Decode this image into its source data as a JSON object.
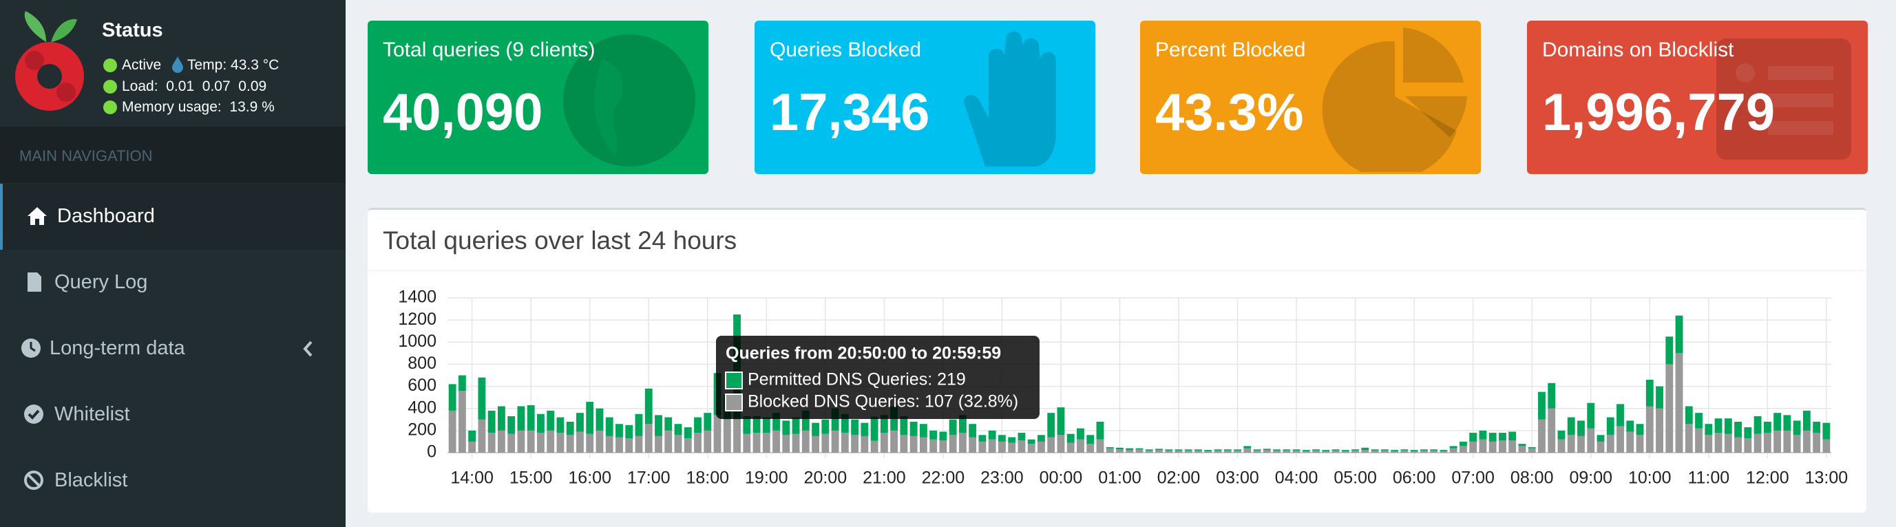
{
  "sidebar": {
    "status": {
      "title": "Status",
      "active": "Active",
      "temp": "Temp: 43.3 °C",
      "load": "Load:  0.01  0.07  0.09",
      "memory": "Memory usage:  13.9 %"
    },
    "nav_header": "MAIN NAVIGATION",
    "menu": [
      "Dashboard",
      "Query Log",
      "Long-term data",
      "Whitelist",
      "Blacklist"
    ]
  },
  "cards": [
    {
      "label": "Total queries (9 clients)",
      "value": "40,090"
    },
    {
      "label": "Queries Blocked",
      "value": "17,346"
    },
    {
      "label": "Percent Blocked",
      "value": "43.3%"
    },
    {
      "label": "Domains on Blocklist",
      "value": "1,996,779"
    }
  ],
  "chart_data": {
    "type": "bar",
    "stacked": true,
    "title": "Total queries over last 24 hours",
    "grid": true,
    "ylim": [
      0,
      1400
    ],
    "yticks": [
      0,
      200,
      400,
      600,
      800,
      1000,
      1200,
      1400
    ],
    "categories": [
      null,
      null,
      "14:00",
      null,
      null,
      null,
      null,
      null,
      "15:00",
      null,
      null,
      null,
      null,
      null,
      "16:00",
      null,
      null,
      null,
      null,
      null,
      "17:00",
      null,
      null,
      null,
      null,
      null,
      "18:00",
      null,
      null,
      null,
      null,
      null,
      "19:00",
      null,
      null,
      null,
      null,
      null,
      "20:00",
      null,
      null,
      null,
      null,
      null,
      "21:00",
      null,
      null,
      null,
      null,
      null,
      "22:00",
      null,
      null,
      null,
      null,
      null,
      "23:00",
      null,
      null,
      null,
      null,
      null,
      "00:00",
      null,
      null,
      null,
      null,
      null,
      "01:00",
      null,
      null,
      null,
      null,
      null,
      "02:00",
      null,
      null,
      null,
      null,
      null,
      "03:00",
      null,
      null,
      null,
      null,
      null,
      "04:00",
      null,
      null,
      null,
      null,
      null,
      "05:00",
      null,
      null,
      null,
      null,
      null,
      "06:00",
      null,
      null,
      null,
      null,
      null,
      "07:00",
      null,
      null,
      null,
      null,
      null,
      "08:00",
      null,
      null,
      null,
      null,
      null,
      "09:00",
      null,
      null,
      null,
      null,
      null,
      "10:00",
      null,
      null,
      null,
      null,
      null,
      "11:00",
      null,
      null,
      null,
      null,
      null,
      "12:00",
      null,
      null,
      null,
      null,
      null,
      "13:00"
    ],
    "series": [
      {
        "color": "#999999",
        "values": [
          380,
          560,
          100,
          300,
          180,
          200,
          170,
          200,
          200,
          180,
          200,
          180,
          160,
          190,
          170,
          200,
          150,
          140,
          130,
          150,
          260,
          150,
          200,
          160,
          130,
          180,
          200,
          340,
          300,
          300,
          170,
          180,
          180,
          200,
          160,
          170,
          200,
          150,
          170,
          200,
          180,
          160,
          150,
          107,
          180,
          200,
          160,
          150,
          140,
          120,
          110,
          160,
          180,
          140,
          100,
          120,
          100,
          90,
          110,
          80,
          100,
          140,
          160,
          90,
          120,
          80,
          120,
          40,
          30,
          25,
          30,
          20,
          25,
          20,
          20,
          20,
          20,
          15,
          20,
          20,
          20,
          40,
          20,
          25,
          20,
          20,
          20,
          15,
          20,
          15,
          20,
          15,
          20,
          25,
          20,
          20,
          15,
          20,
          15,
          20,
          20,
          15,
          40,
          60,
          100,
          120,
          100,
          110,
          110,
          60,
          40,
          300,
          400,
          120,
          160,
          150,
          220,
          100,
          160,
          240,
          190,
          160,
          420,
          400,
          800,
          900,
          260,
          220,
          160,
          180,
          170,
          140,
          130,
          170,
          180,
          200,
          200,
          160,
          200,
          180,
          120
        ]
      },
      {
        "color": "#00a65a",
        "values": [
          240,
          140,
          100,
          380,
          200,
          220,
          160,
          220,
          230,
          170,
          180,
          140,
          120,
          170,
          290,
          200,
          170,
          120,
          120,
          200,
          320,
          190,
          120,
          100,
          100,
          140,
          160,
          380,
          220,
          950,
          160,
          150,
          140,
          160,
          130,
          150,
          180,
          120,
          130,
          200,
          170,
          140,
          120,
          219,
          160,
          220,
          170,
          130,
          120,
          80,
          80,
          140,
          160,
          120,
          60,
          80,
          60,
          50,
          70,
          40,
          60,
          220,
          250,
          80,
          100,
          80,
          160,
          10,
          15,
          15,
          10,
          10,
          10,
          10,
          10,
          10,
          10,
          10,
          10,
          10,
          10,
          20,
          10,
          10,
          10,
          10,
          10,
          10,
          10,
          10,
          10,
          10,
          10,
          20,
          10,
          10,
          10,
          10,
          10,
          10,
          10,
          10,
          20,
          40,
          80,
          80,
          80,
          70,
          80,
          20,
          10,
          250,
          230,
          80,
          160,
          140,
          230,
          60,
          160,
          200,
          100,
          100,
          240,
          200,
          250,
          340,
          160,
          140,
          100,
          130,
          140,
          140,
          100,
          160,
          100,
          160,
          140,
          130,
          180,
          100,
          150
        ]
      }
    ],
    "tooltip": {
      "title": "Queries from 20:50:00 to 20:59:59",
      "items": [
        "Permitted DNS Queries: 219",
        "Blocked DNS Queries: 107 (32.8%)"
      ]
    }
  }
}
